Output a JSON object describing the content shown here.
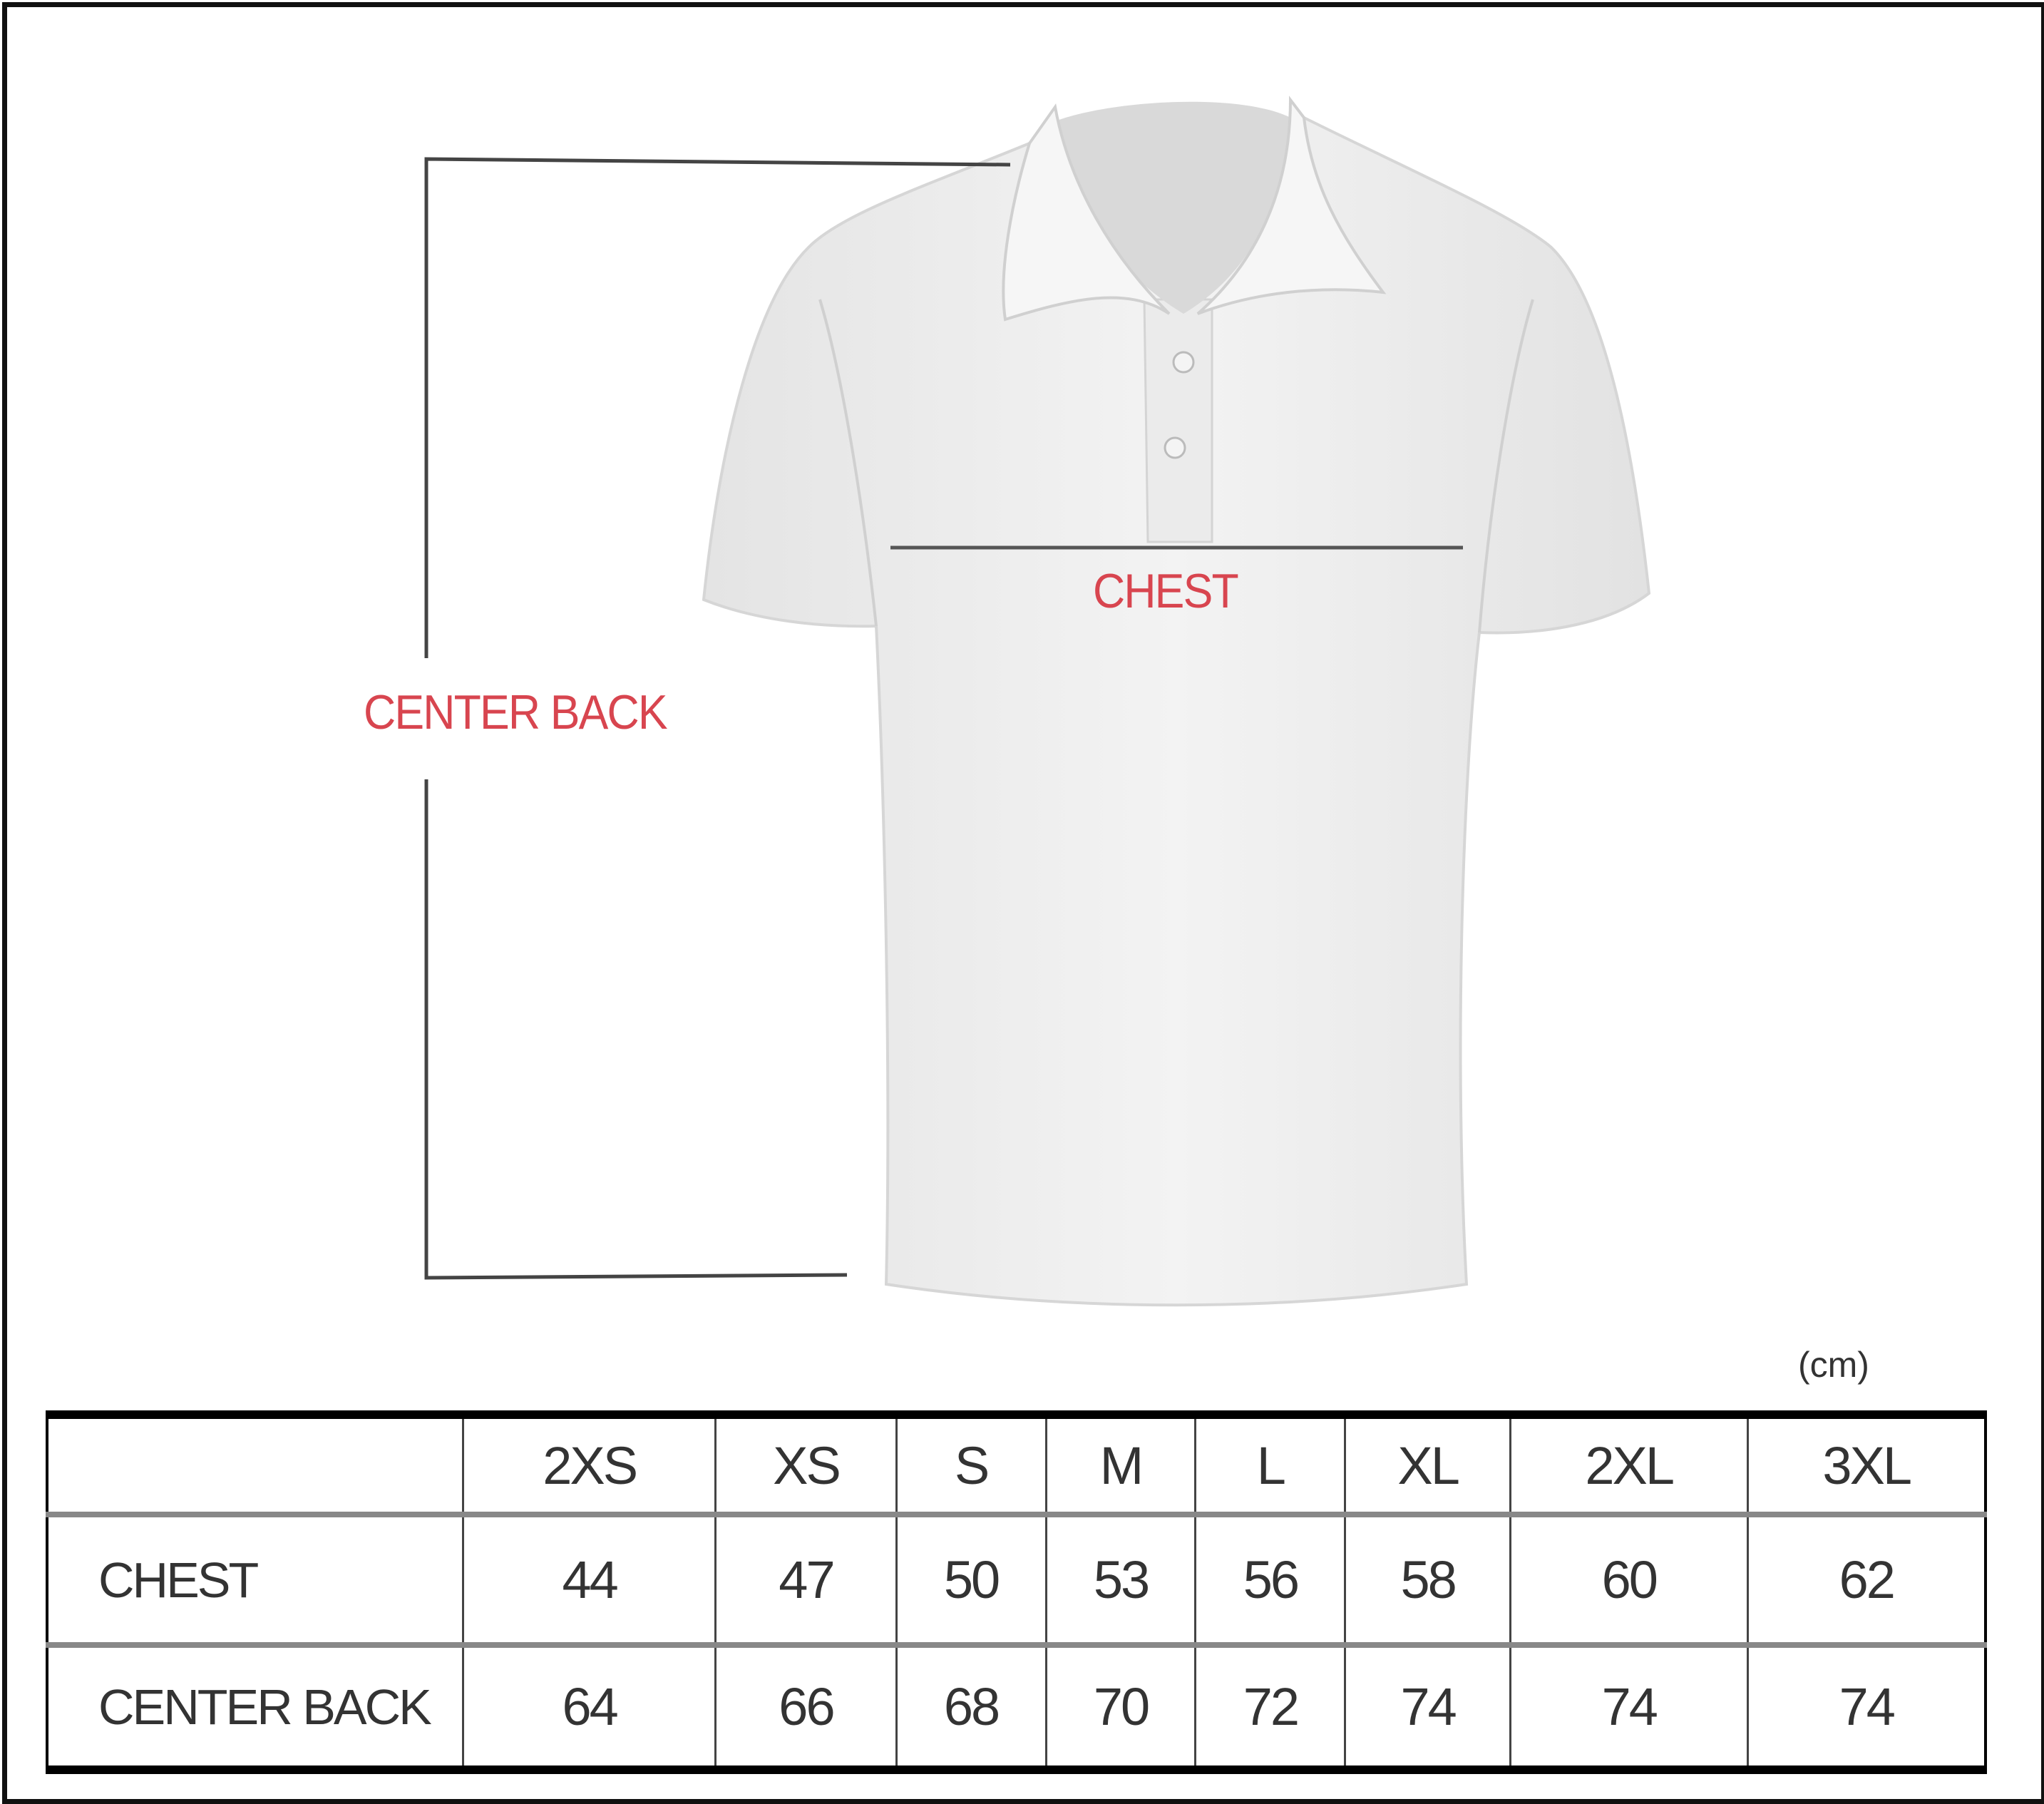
{
  "labels": {
    "chest": "CHEST",
    "center_back": "CENTER BACK",
    "unit": "(cm)"
  },
  "colors": {
    "label": "#d8454f",
    "shirt": "#efefef"
  },
  "table": {
    "columns": [
      "2XS",
      "XS",
      "S",
      "M",
      "L",
      "XL",
      "2XL",
      "3XL"
    ],
    "rows": [
      {
        "label": "CHEST",
        "values": [
          "44",
          "47",
          "50",
          "53",
          "56",
          "58",
          "60",
          "62"
        ]
      },
      {
        "label": "CENTER BACK",
        "values": [
          "64",
          "66",
          "68",
          "70",
          "72",
          "74",
          "74",
          "74"
        ]
      }
    ]
  }
}
